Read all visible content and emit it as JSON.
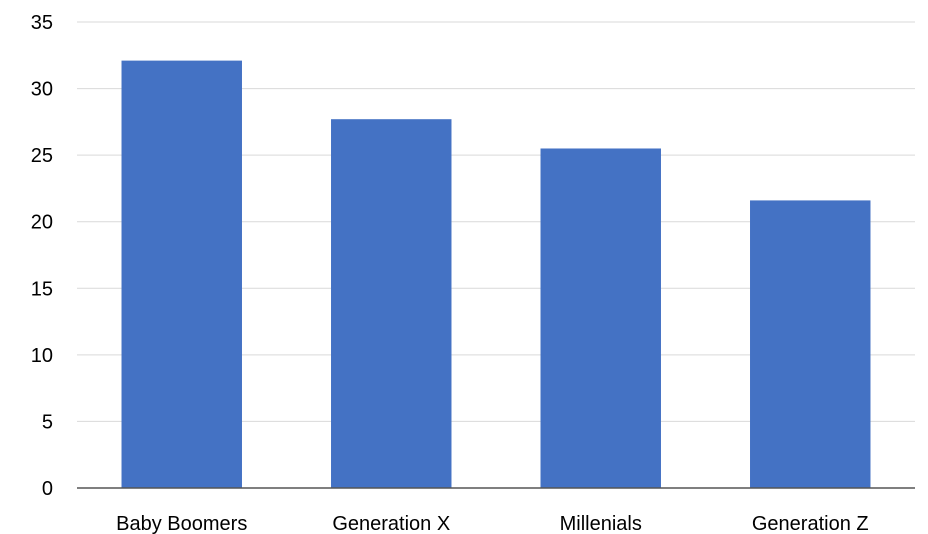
{
  "chart_data": {
    "type": "bar",
    "title": "",
    "xlabel": "",
    "ylabel": "",
    "categories": [
      "Baby Boomers",
      "Generation X",
      "Millenials",
      "Generation Z"
    ],
    "values": [
      32.1,
      27.7,
      25.5,
      21.6
    ],
    "ylim": [
      0,
      35
    ],
    "yticks": [
      0,
      5,
      10,
      15,
      20,
      25,
      30,
      35
    ],
    "grid": true,
    "legend": "none",
    "bar_color": "#4472c4"
  }
}
